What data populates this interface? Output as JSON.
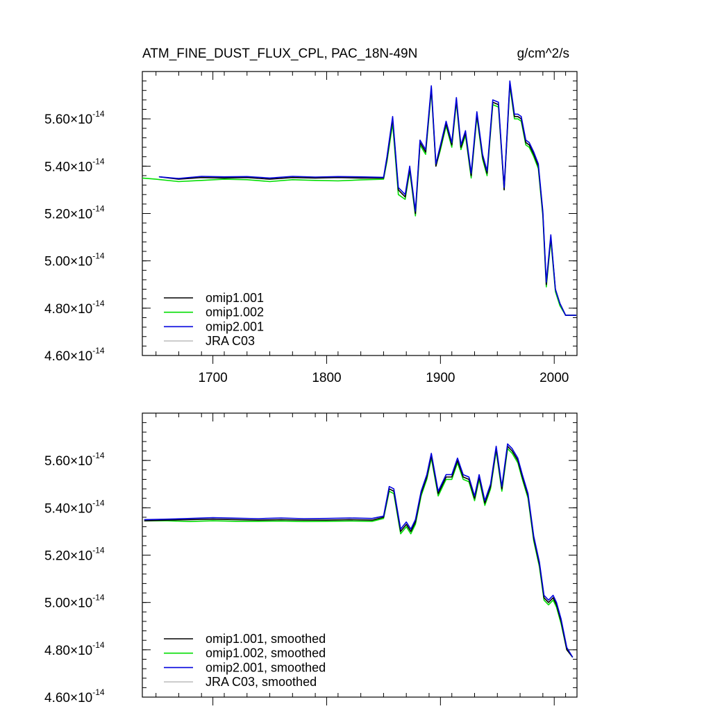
{
  "header": {
    "title": "ATM_FINE_DUST_FLUX_CPL, PAC_18N-49N",
    "units": "g/cm^2/s"
  },
  "legends": {
    "top": [
      "omip1.001",
      "omip1.002",
      "omip2.001",
      "JRA C03"
    ],
    "bottom": [
      "omip1.001, smoothed",
      "omip1.002, smoothed",
      "omip2.001, smoothed",
      "JRA C03, smoothed"
    ]
  },
  "colors": {
    "omip1_001": "#000000",
    "omip1_002": "#00dd00",
    "omip2_001": "#0000dd",
    "jra_c03": "#c0c0c0"
  },
  "chart_data": [
    {
      "type": "line",
      "title": "ATM_FINE_DUST_FLUX_CPL, PAC_18N-49N",
      "units": "g/cm^2/s",
      "xlim": [
        1638,
        2020
      ],
      "ylim": [
        4.6e-14,
        5.8e-14
      ],
      "x_ticks": [
        1700,
        1800,
        1900,
        2000
      ],
      "x_tick_labels": [
        "1700",
        "1800",
        "1900",
        "2000"
      ],
      "y_ticks": [
        4.6e-14,
        4.8e-14,
        5e-14,
        5.2e-14,
        5.4e-14,
        5.6e-14
      ],
      "y_tick_labels": [
        {
          "mantissa": "4.60",
          "exp": "-14"
        },
        {
          "mantissa": "4.80",
          "exp": "-14"
        },
        {
          "mantissa": "5.00",
          "exp": "-14"
        },
        {
          "mantissa": "5.20",
          "exp": "-14"
        },
        {
          "mantissa": "5.40",
          "exp": "-14"
        },
        {
          "mantissa": "5.60",
          "exp": "-14"
        }
      ],
      "legend_position": "bottom-left",
      "series": [
        {
          "name": "omip1.001",
          "x": [
            1653,
            1670,
            1690,
            1710,
            1730,
            1750,
            1770,
            1790,
            1810,
            1830,
            1850,
            1853,
            1858,
            1863,
            1869,
            1873,
            1878,
            1882,
            1887,
            1892,
            1896,
            1900,
            1905,
            1910,
            1914,
            1918,
            1922,
            1927,
            1932,
            1937,
            1941,
            1946,
            1951,
            1956,
            1961,
            1965,
            1968,
            1971,
            1975,
            1978,
            1982,
            1986,
            1990,
            1993,
            1997,
            2001,
            2005,
            2010,
            2015,
            2019
          ],
          "values": [
            5.355e-14,
            5.345e-14,
            5.352e-14,
            5.35e-14,
            5.352e-14,
            5.345e-14,
            5.352e-14,
            5.35e-14,
            5.352e-14,
            5.35e-14,
            5.35e-14,
            5.43e-14,
            5.6e-14,
            5.3e-14,
            5.27e-14,
            5.39e-14,
            5.2e-14,
            5.5e-14,
            5.46e-14,
            5.73e-14,
            5.4e-14,
            5.48e-14,
            5.58e-14,
            5.49e-14,
            5.68e-14,
            5.48e-14,
            5.54e-14,
            5.36e-14,
            5.62e-14,
            5.44e-14,
            5.37e-14,
            5.67e-14,
            5.66e-14,
            5.3e-14,
            5.75e-14,
            5.61e-14,
            5.61e-14,
            5.6e-14,
            5.5e-14,
            5.49e-14,
            5.45e-14,
            5.4e-14,
            5.2e-14,
            4.9e-14,
            5.1e-14,
            4.88e-14,
            4.82e-14,
            4.77e-14,
            4.77e-14,
            4.77e-14
          ]
        },
        {
          "name": "omip1.002",
          "x": [
            1638,
            1650,
            1670,
            1690,
            1710,
            1730,
            1750,
            1770,
            1790,
            1810,
            1830,
            1850,
            1853,
            1858,
            1863,
            1869,
            1873,
            1878,
            1882,
            1887,
            1892,
            1896,
            1900,
            1905,
            1910,
            1914,
            1918,
            1922,
            1927,
            1932,
            1937,
            1941,
            1946,
            1951,
            1956,
            1961,
            1965,
            1968,
            1971,
            1975,
            1978,
            1982,
            1986,
            1990,
            1993,
            1997,
            2001,
            2005,
            2010,
            2015,
            2019
          ],
          "values": [
            5.35e-14,
            5.345e-14,
            5.335e-14,
            5.34e-14,
            5.345e-14,
            5.343e-14,
            5.335e-14,
            5.343e-14,
            5.34e-14,
            5.338e-14,
            5.342e-14,
            5.345e-14,
            5.42e-14,
            5.58e-14,
            5.28e-14,
            5.26e-14,
            5.38e-14,
            5.19e-14,
            5.49e-14,
            5.45e-14,
            5.72e-14,
            5.4e-14,
            5.47e-14,
            5.57e-14,
            5.48e-14,
            5.67e-14,
            5.47e-14,
            5.53e-14,
            5.35e-14,
            5.61e-14,
            5.43e-14,
            5.36e-14,
            5.66e-14,
            5.65e-14,
            5.3e-14,
            5.74e-14,
            5.6e-14,
            5.6e-14,
            5.59e-14,
            5.49e-14,
            5.48e-14,
            5.44e-14,
            5.39e-14,
            5.19e-14,
            4.89e-14,
            5.09e-14,
            4.87e-14,
            4.81e-14,
            4.77e-14,
            4.77e-14,
            4.77e-14
          ]
        },
        {
          "name": "omip2.001",
          "x": [
            1653,
            1670,
            1690,
            1710,
            1730,
            1750,
            1770,
            1790,
            1810,
            1830,
            1850,
            1853,
            1858,
            1863,
            1869,
            1873,
            1878,
            1882,
            1887,
            1892,
            1896,
            1900,
            1905,
            1910,
            1914,
            1918,
            1922,
            1927,
            1932,
            1937,
            1941,
            1946,
            1951,
            1956,
            1961,
            1965,
            1968,
            1971,
            1975,
            1978,
            1982,
            1986,
            1990,
            1993,
            1997,
            2001,
            2005,
            2010,
            2015,
            2019
          ],
          "values": [
            5.355e-14,
            5.348e-14,
            5.357e-14,
            5.355e-14,
            5.356e-14,
            5.35e-14,
            5.357e-14,
            5.354e-14,
            5.356e-14,
            5.355e-14,
            5.353e-14,
            5.44e-14,
            5.61e-14,
            5.31e-14,
            5.28e-14,
            5.4e-14,
            5.21e-14,
            5.51e-14,
            5.47e-14,
            5.74e-14,
            5.41e-14,
            5.49e-14,
            5.59e-14,
            5.5e-14,
            5.69e-14,
            5.49e-14,
            5.55e-14,
            5.37e-14,
            5.63e-14,
            5.45e-14,
            5.38e-14,
            5.68e-14,
            5.67e-14,
            5.31e-14,
            5.76e-14,
            5.62e-14,
            5.62e-14,
            5.61e-14,
            5.51e-14,
            5.5e-14,
            5.46e-14,
            5.41e-14,
            5.21e-14,
            4.91e-14,
            5.11e-14,
            4.88e-14,
            4.82e-14,
            4.77e-14,
            4.77e-14,
            4.77e-14
          ]
        }
      ]
    },
    {
      "type": "line",
      "xlim": [
        1638,
        2020
      ],
      "ylim": [
        4.6e-14,
        5.8e-14
      ],
      "x_ticks": [
        1700,
        1800,
        1900,
        2000
      ],
      "y_ticks": [
        4.6e-14,
        4.8e-14,
        5e-14,
        5.2e-14,
        5.4e-14,
        5.6e-14
      ],
      "y_tick_labels": [
        {
          "mantissa": "4.60",
          "exp": "-14"
        },
        {
          "mantissa": "4.80",
          "exp": "-14"
        },
        {
          "mantissa": "5.00",
          "exp": "-14"
        },
        {
          "mantissa": "5.20",
          "exp": "-14"
        },
        {
          "mantissa": "5.40",
          "exp": "-14"
        },
        {
          "mantissa": "5.60",
          "exp": "-14"
        }
      ],
      "legend_position": "bottom-left",
      "series": [
        {
          "name": "omip1.001, smoothed",
          "x": [
            1640,
            1660,
            1680,
            1700,
            1720,
            1740,
            1760,
            1780,
            1800,
            1820,
            1840,
            1850,
            1855,
            1859,
            1865,
            1870,
            1874,
            1878,
            1883,
            1888,
            1892,
            1898,
            1905,
            1910,
            1915,
            1920,
            1925,
            1930,
            1934,
            1939,
            1944,
            1949,
            1954,
            1959,
            1963,
            1968,
            1972,
            1977,
            1982,
            1987,
            1991,
            1995,
            1999,
            2002,
            2006,
            2011,
            2016
          ],
          "values": [
            5.345e-14,
            5.348e-14,
            5.35e-14,
            5.352e-14,
            5.35e-14,
            5.348e-14,
            5.35e-14,
            5.348e-14,
            5.348e-14,
            5.35e-14,
            5.348e-14,
            5.36e-14,
            5.48e-14,
            5.47e-14,
            5.3e-14,
            5.33e-14,
            5.3e-14,
            5.34e-14,
            5.46e-14,
            5.53e-14,
            5.62e-14,
            5.46e-14,
            5.53e-14,
            5.53e-14,
            5.6e-14,
            5.53e-14,
            5.52e-14,
            5.44e-14,
            5.53e-14,
            5.42e-14,
            5.49e-14,
            5.65e-14,
            5.48e-14,
            5.66e-14,
            5.64e-14,
            5.6e-14,
            5.53e-14,
            5.45e-14,
            5.27e-14,
            5.16e-14,
            5.02e-14,
            5e-14,
            5.02e-14,
            4.99e-14,
            4.92e-14,
            4.8e-14,
            4.77e-14
          ]
        },
        {
          "name": "omip1.002, smoothed",
          "x": [
            1640,
            1660,
            1680,
            1700,
            1720,
            1740,
            1760,
            1780,
            1800,
            1820,
            1840,
            1850,
            1855,
            1859,
            1865,
            1870,
            1874,
            1878,
            1883,
            1888,
            1892,
            1898,
            1905,
            1910,
            1915,
            1920,
            1925,
            1930,
            1934,
            1939,
            1944,
            1949,
            1954,
            1959,
            1963,
            1968,
            1972,
            1977,
            1982,
            1987,
            1991,
            1995,
            1999,
            2002,
            2006,
            2011,
            2016
          ],
          "values": [
            5.345e-14,
            5.345e-14,
            5.342e-14,
            5.345e-14,
            5.343e-14,
            5.343e-14,
            5.344e-14,
            5.342e-14,
            5.343e-14,
            5.344e-14,
            5.343e-14,
            5.355e-14,
            5.47e-14,
            5.46e-14,
            5.29e-14,
            5.32e-14,
            5.29e-14,
            5.33e-14,
            5.45e-14,
            5.52e-14,
            5.61e-14,
            5.45e-14,
            5.52e-14,
            5.52e-14,
            5.59e-14,
            5.52e-14,
            5.51e-14,
            5.43e-14,
            5.52e-14,
            5.41e-14,
            5.48e-14,
            5.64e-14,
            5.47e-14,
            5.65e-14,
            5.63e-14,
            5.59e-14,
            5.52e-14,
            5.44e-14,
            5.26e-14,
            5.15e-14,
            5.01e-14,
            4.99e-14,
            5.01e-14,
            4.98e-14,
            4.91e-14,
            4.8e-14,
            4.77e-14
          ]
        },
        {
          "name": "omip2.001, smoothed",
          "x": [
            1640,
            1660,
            1680,
            1700,
            1720,
            1740,
            1760,
            1780,
            1800,
            1820,
            1840,
            1850,
            1855,
            1859,
            1865,
            1870,
            1874,
            1878,
            1883,
            1888,
            1892,
            1898,
            1905,
            1910,
            1915,
            1920,
            1925,
            1930,
            1934,
            1939,
            1944,
            1949,
            1954,
            1959,
            1963,
            1968,
            1972,
            1977,
            1982,
            1987,
            1991,
            1995,
            1999,
            2002,
            2006,
            2011,
            2016
          ],
          "values": [
            5.35e-14,
            5.352e-14,
            5.355e-14,
            5.358e-14,
            5.356e-14,
            5.354e-14,
            5.357e-14,
            5.354e-14,
            5.355e-14,
            5.357e-14,
            5.355e-14,
            5.365e-14,
            5.49e-14,
            5.48e-14,
            5.31e-14,
            5.34e-14,
            5.31e-14,
            5.35e-14,
            5.47e-14,
            5.54e-14,
            5.63e-14,
            5.47e-14,
            5.54e-14,
            5.54e-14,
            5.61e-14,
            5.54e-14,
            5.53e-14,
            5.45e-14,
            5.54e-14,
            5.43e-14,
            5.5e-14,
            5.66e-14,
            5.49e-14,
            5.67e-14,
            5.65e-14,
            5.61e-14,
            5.54e-14,
            5.46e-14,
            5.28e-14,
            5.17e-14,
            5.03e-14,
            5.01e-14,
            5.03e-14,
            5e-14,
            4.93e-14,
            4.81e-14,
            4.77e-14
          ]
        }
      ]
    }
  ]
}
